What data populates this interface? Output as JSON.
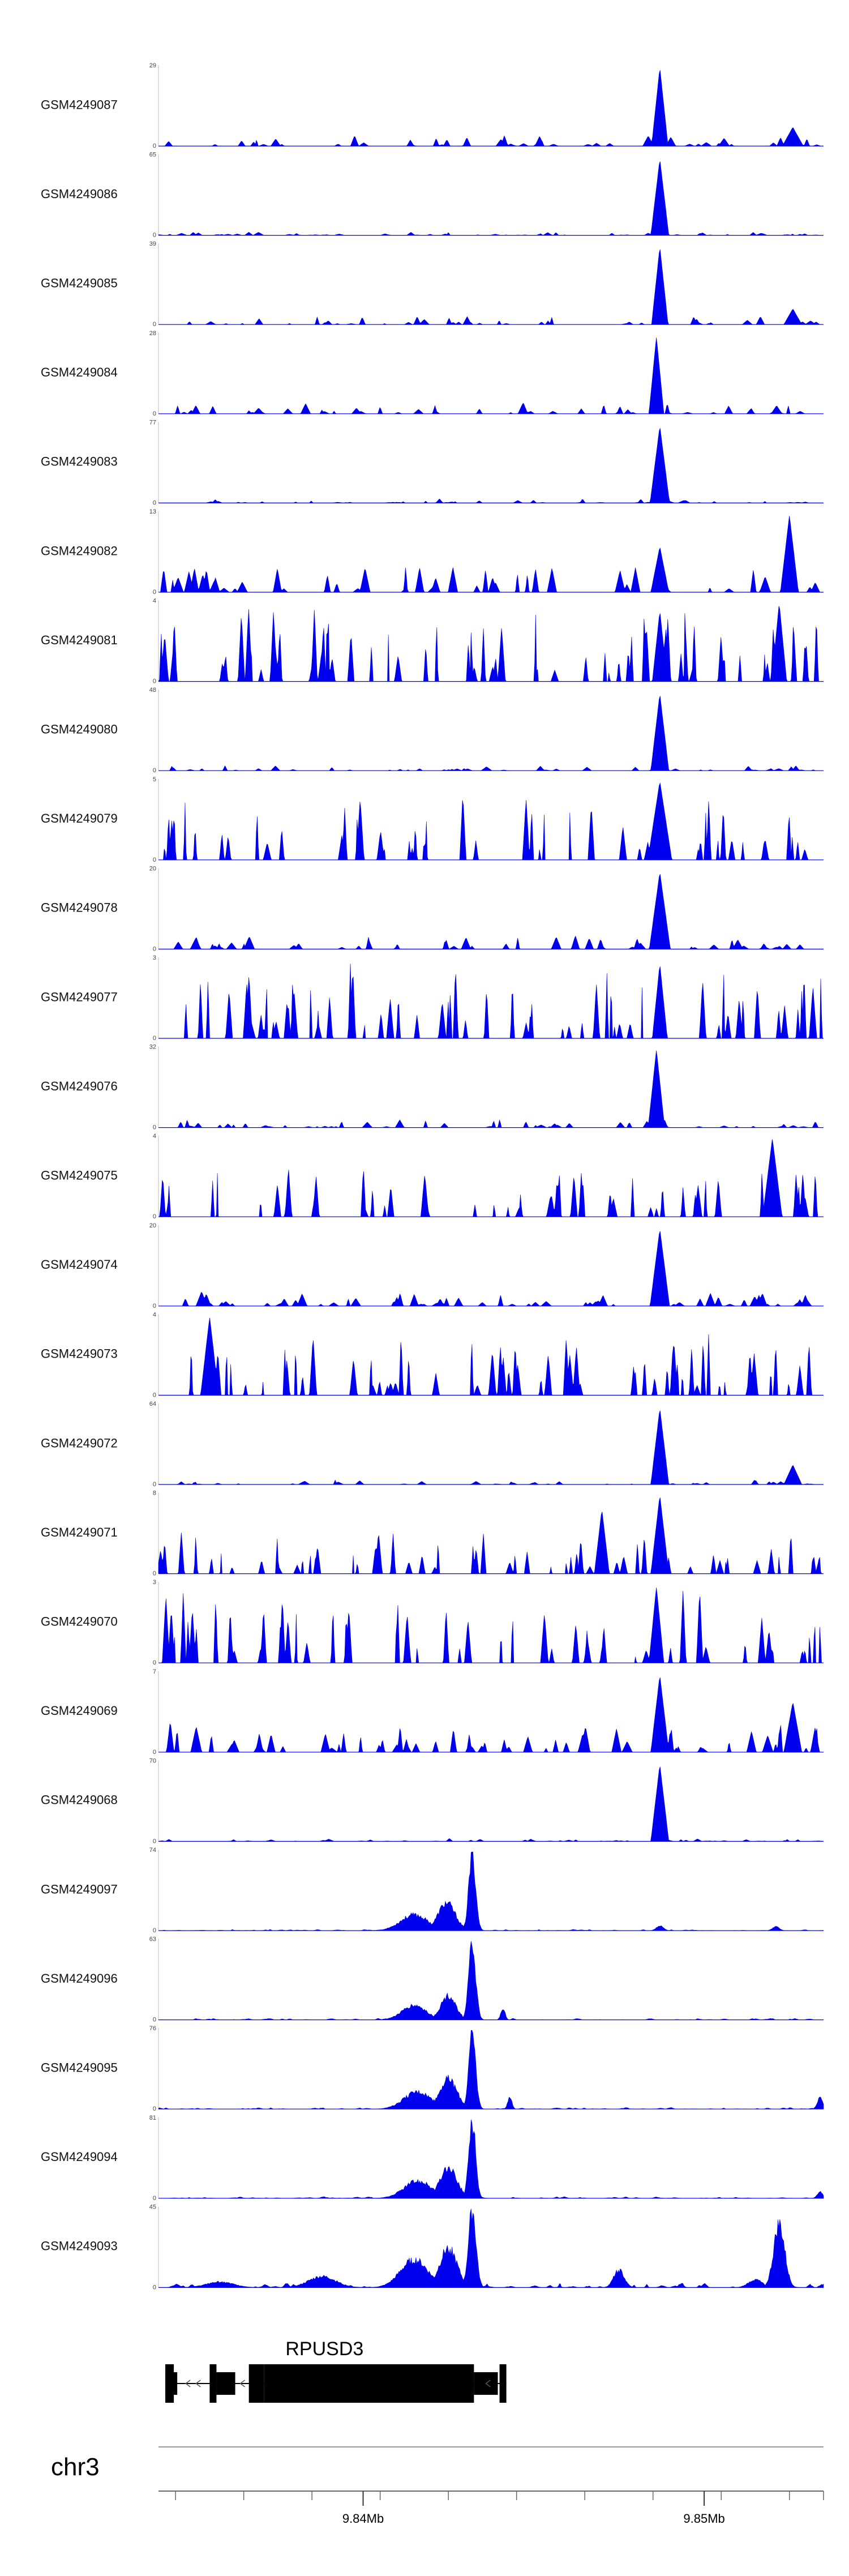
{
  "chart_data": {
    "type": "area",
    "genome_browser": true,
    "x": {
      "chromosome": "chr3",
      "range_mb": [
        9.834,
        9.8535
      ],
      "ticks": [
        {
          "value": 9.84,
          "label": "9.84Mb"
        },
        {
          "value": 9.85,
          "label": "9.85Mb"
        }
      ],
      "minor_ticks_mb": [
        9.8345,
        9.8365,
        9.8385,
        9.8405,
        9.8425,
        9.8445,
        9.8465,
        9.8485,
        9.8505,
        9.8525,
        9.8535
      ]
    },
    "fill_color": "#0000ee",
    "tracks": [
      {
        "name": "GSM4249087",
        "ymax": 29,
        "ymin": 0,
        "style": "sharp",
        "seed": 87,
        "noise": 0.12,
        "density": 50,
        "peaks": [
          {
            "x": 9.8487,
            "h": 1.0,
            "w": 0.00011
          },
          {
            "x": 9.8526,
            "h": 0.24,
            "w": 0.00014
          }
        ]
      },
      {
        "name": "GSM4249086",
        "ymax": 65,
        "ymin": 0,
        "style": "sharp",
        "seed": 86,
        "noise": 0.035,
        "density": 60,
        "peaks": [
          {
            "x": 9.8487,
            "h": 0.97,
            "w": 0.00012
          }
        ]
      },
      {
        "name": "GSM4249085",
        "ymax": 39,
        "ymin": 0,
        "style": "sharp",
        "seed": 85,
        "noise": 0.09,
        "density": 45,
        "peaks": [
          {
            "x": 9.8487,
            "h": 0.99,
            "w": 0.00011
          },
          {
            "x": 9.8526,
            "h": 0.2,
            "w": 0.00012
          }
        ]
      },
      {
        "name": "GSM4249084",
        "ymax": 28,
        "ymin": 0,
        "style": "sharp",
        "seed": 84,
        "noise": 0.12,
        "density": 50,
        "peaks": [
          {
            "x": 9.8486,
            "h": 0.98,
            "w": 0.0001
          }
        ]
      },
      {
        "name": "GSM4249083",
        "ymax": 77,
        "ymin": 0,
        "style": "sharp",
        "seed": 83,
        "noise": 0.05,
        "density": 45,
        "peaks": [
          {
            "x": 9.8487,
            "h": 0.98,
            "w": 0.00013
          }
        ]
      },
      {
        "name": "GSM4249082",
        "ymax": 13,
        "ymin": 0,
        "style": "sharp",
        "seed": 82,
        "noise": 0.3,
        "density": 55,
        "peaks": [
          {
            "x": 9.8487,
            "h": 0.58,
            "w": 0.00012
          },
          {
            "x": 9.8525,
            "h": 0.98,
            "w": 0.00012
          }
        ]
      },
      {
        "name": "GSM4249081",
        "ymax": 4,
        "ymin": 0,
        "style": "spiky",
        "seed": 81,
        "noise": 0.95,
        "density": 75,
        "peaks": [
          {
            "x": 9.8487,
            "h": 0.9,
            "w": 0.0001
          },
          {
            "x": 9.8522,
            "h": 1.0,
            "w": 0.0001
          }
        ]
      },
      {
        "name": "GSM4249080",
        "ymax": 48,
        "ymin": 0,
        "style": "sharp",
        "seed": 80,
        "noise": 0.06,
        "density": 50,
        "peaks": [
          {
            "x": 9.8487,
            "h": 0.98,
            "w": 0.00012
          }
        ]
      },
      {
        "name": "GSM4249079",
        "ymax": 5,
        "ymin": 0,
        "style": "spiky",
        "seed": 79,
        "noise": 0.9,
        "density": 48,
        "peaks": [
          {
            "x": 9.8487,
            "h": 1.0,
            "w": 0.00016
          }
        ]
      },
      {
        "name": "GSM4249078",
        "ymax": 20,
        "ymin": 0,
        "style": "sharp",
        "seed": 78,
        "noise": 0.15,
        "density": 55,
        "peaks": [
          {
            "x": 9.8487,
            "h": 0.98,
            "w": 0.00014
          }
        ]
      },
      {
        "name": "GSM4249077",
        "ymax": 3,
        "ymin": 0,
        "style": "spiky",
        "seed": 77,
        "noise": 0.98,
        "density": 70,
        "peaks": [
          {
            "x": 9.8487,
            "h": 0.95,
            "w": 0.0001
          }
        ]
      },
      {
        "name": "GSM4249076",
        "ymax": 32,
        "ymin": 0,
        "style": "sharp",
        "seed": 76,
        "noise": 0.09,
        "density": 50,
        "peaks": [
          {
            "x": 9.8486,
            "h": 0.99,
            "w": 0.00011
          }
        ]
      },
      {
        "name": "GSM4249075",
        "ymax": 4,
        "ymin": 0,
        "style": "spiky",
        "seed": 75,
        "noise": 0.7,
        "density": 55,
        "peaks": [
          {
            "x": 9.852,
            "h": 1.0,
            "w": 0.00013
          }
        ]
      },
      {
        "name": "GSM4249074",
        "ymax": 20,
        "ymin": 0,
        "style": "sharp",
        "seed": 74,
        "noise": 0.17,
        "density": 60,
        "peaks": [
          {
            "x": 9.8487,
            "h": 0.98,
            "w": 0.00013
          }
        ]
      },
      {
        "name": "GSM4249073",
        "ymax": 4,
        "ymin": 0,
        "style": "spiky",
        "seed": 73,
        "noise": 0.8,
        "density": 65,
        "peaks": [
          {
            "x": 9.8355,
            "h": 1.0,
            "w": 0.00012
          }
        ]
      },
      {
        "name": "GSM4249072",
        "ymax": 64,
        "ymin": 0,
        "style": "sharp",
        "seed": 72,
        "noise": 0.05,
        "density": 50,
        "peaks": [
          {
            "x": 9.8487,
            "h": 0.97,
            "w": 0.00012
          },
          {
            "x": 9.8526,
            "h": 0.25,
            "w": 0.00012
          }
        ]
      },
      {
        "name": "GSM4249071",
        "ymax": 8,
        "ymin": 0,
        "style": "spiky",
        "seed": 71,
        "noise": 0.55,
        "density": 60,
        "peaks": [
          {
            "x": 9.8487,
            "h": 1.0,
            "w": 0.00012
          },
          {
            "x": 9.847,
            "h": 0.82,
            "w": 0.0001
          }
        ]
      },
      {
        "name": "GSM4249070",
        "ymax": 3,
        "ymin": 0,
        "style": "spiky",
        "seed": 70,
        "noise": 0.95,
        "density": 58,
        "peaks": [
          {
            "x": 9.8486,
            "h": 0.97,
            "w": 0.0001
          }
        ]
      },
      {
        "name": "GSM4249069",
        "ymax": 7,
        "ymin": 0,
        "style": "sharp",
        "seed": 69,
        "noise": 0.35,
        "density": 60,
        "peaks": [
          {
            "x": 9.8487,
            "h": 0.98,
            "w": 0.00012
          },
          {
            "x": 9.8526,
            "h": 0.64,
            "w": 0.00012
          }
        ]
      },
      {
        "name": "GSM4249068",
        "ymax": 70,
        "ymin": 0,
        "style": "sharp",
        "seed": 68,
        "noise": 0.035,
        "density": 50,
        "peaks": [
          {
            "x": 9.8487,
            "h": 0.98,
            "w": 0.00012
          }
        ]
      },
      {
        "name": "GSM4249097",
        "ymax": 74,
        "ymin": 0,
        "style": "smooth",
        "seed": 97,
        "noise": 0.015,
        "density": 90,
        "peaks": [
          {
            "x": 9.8415,
            "h": 0.2,
            "w": 0.0004
          },
          {
            "x": 9.84245,
            "h": 0.35,
            "w": 0.00025
          },
          {
            "x": 9.8432,
            "h": 0.96,
            "w": 0.0001
          },
          {
            "x": 9.8487,
            "h": 0.06,
            "w": 0.0001
          },
          {
            "x": 9.8521,
            "h": 0.05,
            "w": 0.0001
          }
        ]
      },
      {
        "name": "GSM4249096",
        "ymax": 63,
        "ymin": 0,
        "style": "smooth",
        "seed": 96,
        "noise": 0.02,
        "density": 90,
        "peaks": [
          {
            "x": 9.8415,
            "h": 0.18,
            "w": 0.00035
          },
          {
            "x": 9.8425,
            "h": 0.3,
            "w": 0.00022
          },
          {
            "x": 9.8432,
            "h": 0.97,
            "w": 0.0001
          },
          {
            "x": 9.8441,
            "h": 0.15,
            "w": 6e-05
          }
        ]
      },
      {
        "name": "GSM4249095",
        "ymax": 76,
        "ymin": 0,
        "style": "smooth",
        "seed": 95,
        "noise": 0.02,
        "density": 90,
        "peaks": [
          {
            "x": 9.8416,
            "h": 0.22,
            "w": 0.0004
          },
          {
            "x": 9.8425,
            "h": 0.38,
            "w": 0.00025
          },
          {
            "x": 9.8432,
            "h": 0.96,
            "w": 0.0001
          },
          {
            "x": 9.8443,
            "h": 0.16,
            "w": 6e-05
          },
          {
            "x": 9.8534,
            "h": 0.14,
            "w": 8e-05
          }
        ]
      },
      {
        "name": "GSM4249094",
        "ymax": 81,
        "ymin": 0,
        "style": "smooth",
        "seed": 94,
        "noise": 0.02,
        "density": 90,
        "peaks": [
          {
            "x": 9.8416,
            "h": 0.22,
            "w": 0.0004
          },
          {
            "x": 9.8425,
            "h": 0.38,
            "w": 0.00025
          },
          {
            "x": 9.8432,
            "h": 0.96,
            "w": 0.0001
          },
          {
            "x": 9.8534,
            "h": 0.08,
            "w": 8e-05
          }
        ]
      },
      {
        "name": "GSM4249093",
        "ymax": 45,
        "ymin": 0,
        "style": "smooth",
        "seed": 93,
        "noise": 0.06,
        "density": 90,
        "peaks": [
          {
            "x": 9.8358,
            "h": 0.07,
            "w": 0.0004
          },
          {
            "x": 9.8388,
            "h": 0.14,
            "w": 0.0004
          },
          {
            "x": 9.8415,
            "h": 0.35,
            "w": 0.0004
          },
          {
            "x": 9.8425,
            "h": 0.5,
            "w": 0.00025
          },
          {
            "x": 9.8432,
            "h": 0.98,
            "w": 0.00011
          },
          {
            "x": 9.8475,
            "h": 0.22,
            "w": 0.00015
          },
          {
            "x": 9.8515,
            "h": 0.1,
            "w": 0.0002
          },
          {
            "x": 9.8522,
            "h": 0.8,
            "w": 0.00016
          }
        ]
      }
    ],
    "gene": {
      "name": "RPUSD3",
      "span_mb": [
        9.8342,
        9.8442
      ],
      "exons": [
        {
          "start": 9.8342,
          "end": 9.83445,
          "thick": true
        },
        {
          "start": 9.8342,
          "end": 9.83455,
          "thick": false
        },
        {
          "start": 9.8355,
          "end": 9.8357,
          "thick": true
        },
        {
          "start": 9.8357,
          "end": 9.83625,
          "thick": false
        },
        {
          "start": 9.83665,
          "end": 9.8371,
          "thick": true
        },
        {
          "start": 9.8371,
          "end": 9.84325,
          "thick": true
        },
        {
          "start": 9.8373,
          "end": 9.8375,
          "thick": true
        },
        {
          "start": 9.8385,
          "end": 9.8387,
          "thick": true
        },
        {
          "start": 9.8398,
          "end": 9.84005,
          "thick": true
        },
        {
          "start": 9.8415,
          "end": 9.8417,
          "thick": true
        },
        {
          "start": 9.8428,
          "end": 9.84305,
          "thick": true
        },
        {
          "start": 9.84325,
          "end": 9.84395,
          "thick": false
        },
        {
          "start": 9.844,
          "end": 9.8442,
          "thick": true
        }
      ],
      "strand_arrows_mb": [
        9.8348,
        9.8351,
        9.8364,
        9.8436
      ]
    }
  }
}
